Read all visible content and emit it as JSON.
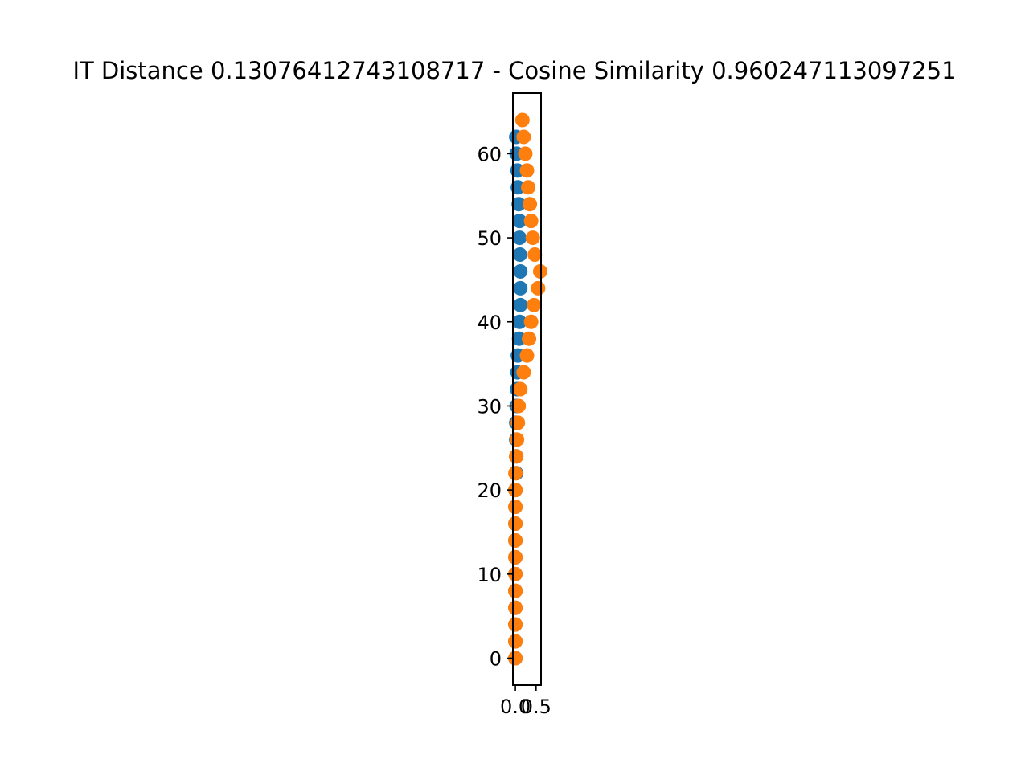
{
  "chart_data": {
    "type": "scatter",
    "title": "IT Distance 0.13076412743108717 - Cosine Similarity 0.960247113097251",
    "xlabel": "",
    "ylabel": "",
    "xlim": [
      -0.06,
      0.62
    ],
    "ylim": [
      -3.2,
      67.2
    ],
    "x_ticks": [
      0.0,
      0.5
    ],
    "x_tick_labels": [
      "0.0",
      "0.5"
    ],
    "y_ticks": [
      0,
      10,
      20,
      30,
      40,
      50,
      60
    ],
    "y_tick_labels": [
      "0",
      "10",
      "20",
      "30",
      "40",
      "50",
      "60"
    ],
    "grid": false,
    "legend": "none",
    "series": [
      {
        "color": "#1f77b4",
        "x": [
          0.0,
          0.0,
          0.0,
          0.0,
          0.0,
          0.0,
          0.0,
          0.0,
          0.0,
          0.0,
          0.0,
          0.02,
          0.02,
          0.02,
          0.02,
          0.03,
          0.04,
          0.05,
          0.06,
          0.09,
          0.1,
          0.12,
          0.12,
          0.12,
          0.11,
          0.1,
          0.1,
          0.08,
          0.06,
          0.05,
          0.03,
          0.02
        ],
        "y": [
          0,
          2,
          4,
          6,
          8,
          10,
          12,
          14,
          16,
          18,
          20,
          22,
          24,
          26,
          28,
          30,
          32,
          34,
          36,
          38,
          40,
          42,
          44,
          46,
          48,
          50,
          52,
          54,
          56,
          58,
          60,
          62
        ]
      },
      {
        "color": "#ff7f0e",
        "x": [
          0.0,
          0.0,
          0.0,
          0.0,
          0.0,
          0.0,
          0.0,
          0.0,
          0.0,
          0.0,
          0.0,
          0.0,
          0.02,
          0.04,
          0.06,
          0.08,
          0.12,
          0.2,
          0.28,
          0.33,
          0.38,
          0.45,
          0.55,
          0.6,
          0.47,
          0.42,
          0.38,
          0.35,
          0.31,
          0.28,
          0.24,
          0.2,
          0.17
        ],
        "y": [
          0,
          2,
          4,
          6,
          8,
          10,
          12,
          14,
          16,
          18,
          20,
          22,
          24,
          26,
          28,
          30,
          32,
          34,
          36,
          38,
          40,
          42,
          44,
          46,
          48,
          50,
          52,
          54,
          56,
          58,
          60,
          62,
          64
        ]
      }
    ]
  }
}
